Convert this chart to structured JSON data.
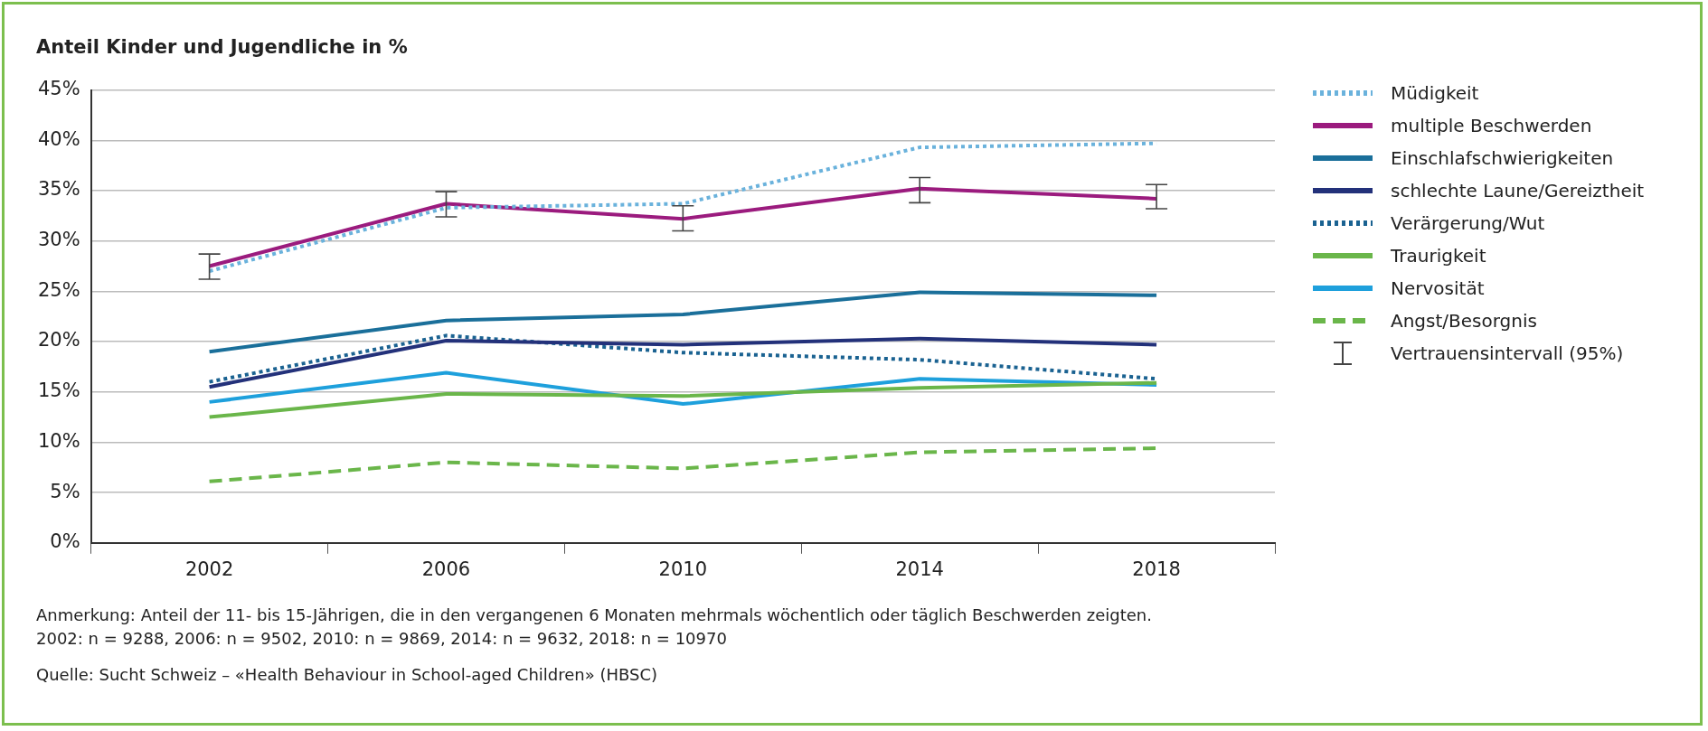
{
  "chart_data": {
    "type": "line",
    "ylabel": "Anteil Kinder und Jugendliche in %",
    "categories": [
      "2002",
      "2006",
      "2010",
      "2014",
      "2018"
    ],
    "series": [
      {
        "name": "Müdigkeit",
        "color": "#6ab2dc",
        "line_style": "dotted",
        "values": [
          27,
          33.3,
          33.7,
          39.3,
          39.7
        ]
      },
      {
        "name": "multiple Beschwerden",
        "color": "#9b1b7e",
        "line_style": "solid",
        "values": [
          27.5,
          33.7,
          32.2,
          35.2,
          34.2
        ],
        "errors": [
          [
            26.2,
            28.7
          ],
          [
            32.4,
            34.9
          ],
          [
            31,
            33.5
          ],
          [
            33.8,
            36.3
          ],
          [
            33.2,
            35.6
          ]
        ]
      },
      {
        "name": "Einschlafschwierigkeiten",
        "color": "#1a6f9a",
        "line_style": "solid",
        "values": [
          19,
          22.1,
          22.7,
          24.9,
          24.6
        ]
      },
      {
        "name": "schlechte Laune/Gereiztheit",
        "color": "#23317a",
        "line_style": "solid",
        "values": [
          15.5,
          20.1,
          19.7,
          20.3,
          19.7
        ]
      },
      {
        "name": "Verärgerung/Wut",
        "color": "#1a6291",
        "line_style": "dotted",
        "values": [
          16,
          20.6,
          18.9,
          18.2,
          16.3
        ]
      },
      {
        "name": "Traurigkeit",
        "color": "#6ab64a",
        "line_style": "solid",
        "values": [
          12.5,
          14.8,
          14.6,
          15.4,
          15.9
        ]
      },
      {
        "name": "Nervosität",
        "color": "#1ea0dc",
        "line_style": "solid",
        "values": [
          14,
          16.9,
          13.8,
          16.3,
          15.7
        ]
      },
      {
        "name": "Angst/Besorgnis",
        "color": "#6ab64a",
        "line_style": "dashed",
        "values": [
          6.1,
          8,
          7.4,
          9,
          9.4
        ]
      }
    ],
    "ylim": [
      0,
      45
    ],
    "yticks": [
      {
        "value": 0,
        "label": "0%"
      },
      {
        "value": 5,
        "label": "5%"
      },
      {
        "value": 10,
        "label": "10%"
      },
      {
        "value": 15,
        "label": "15%"
      },
      {
        "value": 20,
        "label": "20%"
      },
      {
        "value": 25,
        "label": "25%"
      },
      {
        "value": 30,
        "label": "30%"
      },
      {
        "value": 35,
        "label": "35%"
      },
      {
        "value": 40,
        "label": "40%"
      },
      {
        "value": 45,
        "label": "45%"
      }
    ],
    "grid": "y",
    "legend": "right",
    "marker": "none",
    "annotations": [
      "Vertrauensintervall (95%)",
      "Anmerkung: Anteil der 11- bis 15-Jährigen, die in den vergangenen 6 Monaten mehrmals wöchentlich oder täglich Beschwerden zeigten.",
      "2002: n = 9288, 2006: n = 9502, 2010: n = 9869, 2014: n = 9632, 2018: n = 10970",
      "Quelle: Sucht Schweiz – «Health Behaviour in School-aged Children» (HBSC)"
    ]
  }
}
